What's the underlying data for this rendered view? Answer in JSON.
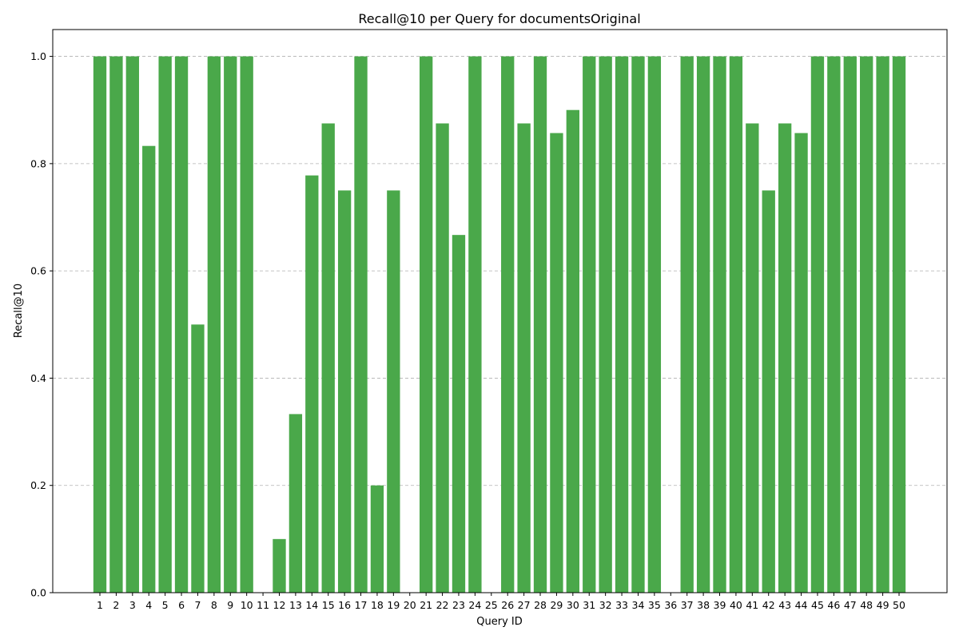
{
  "chart_data": {
    "type": "bar",
    "title": "Recall@10 per Query for documentsOriginal",
    "xlabel": "Query ID",
    "ylabel": "Recall@10",
    "ylim": [
      0,
      1.05
    ],
    "yticks": [
      "0.0",
      "0.2",
      "0.4",
      "0.6",
      "0.8",
      "1.0"
    ],
    "grid": "y-dashed",
    "bar_color": "#4aa84a",
    "categories": [
      "1",
      "2",
      "3",
      "4",
      "5",
      "6",
      "7",
      "8",
      "9",
      "10",
      "11",
      "12",
      "13",
      "14",
      "15",
      "16",
      "17",
      "18",
      "19",
      "20",
      "21",
      "22",
      "23",
      "24",
      "25",
      "26",
      "27",
      "28",
      "29",
      "30",
      "31",
      "32",
      "33",
      "34",
      "35",
      "36",
      "37",
      "38",
      "39",
      "40",
      "41",
      "42",
      "43",
      "44",
      "45",
      "46",
      "47",
      "48",
      "49",
      "50"
    ],
    "values": [
      1.0,
      1.0,
      1.0,
      0.833,
      1.0,
      1.0,
      0.5,
      1.0,
      1.0,
      1.0,
      0.0,
      0.1,
      0.333,
      0.778,
      0.875,
      0.75,
      1.0,
      0.2,
      0.75,
      0.0,
      1.0,
      0.875,
      0.667,
      1.0,
      0.0,
      1.0,
      0.875,
      1.0,
      0.857,
      0.9,
      1.0,
      1.0,
      1.0,
      1.0,
      1.0,
      0.0,
      1.0,
      1.0,
      1.0,
      1.0,
      0.875,
      0.75,
      0.875,
      0.857,
      1.0,
      1.0,
      1.0,
      1.0,
      1.0,
      1.0
    ]
  }
}
